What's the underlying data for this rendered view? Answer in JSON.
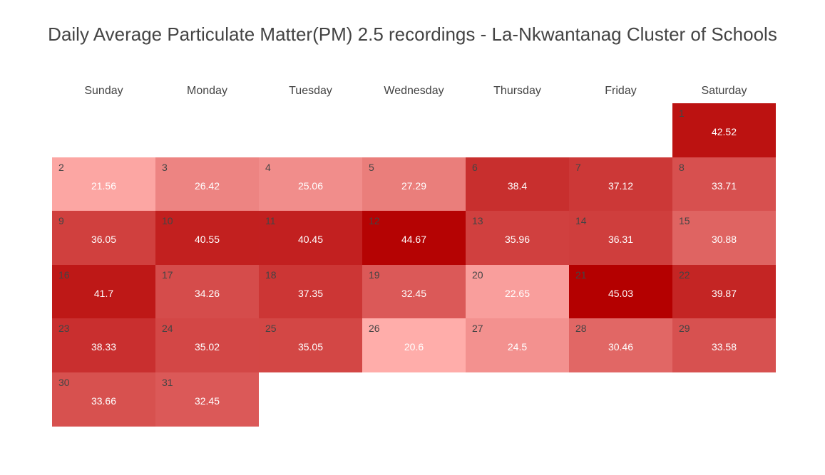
{
  "chart_data": {
    "type": "heatmap",
    "title": "Daily Average Particulate Matter(PM) 2.5 recordings -  La-Nkwantanag Cluster of Schools",
    "weekdays": [
      "Sunday",
      "Monday",
      "Tuesday",
      "Wednesday",
      "Thursday",
      "Friday",
      "Saturday"
    ],
    "first_weekday_index": 6,
    "color_scale": {
      "low": "#ffadaa",
      "high": "#b40000"
    },
    "days": [
      {
        "day": 1,
        "value": 42.52
      },
      {
        "day": 2,
        "value": 21.56
      },
      {
        "day": 3,
        "value": 26.42
      },
      {
        "day": 4,
        "value": 25.06
      },
      {
        "day": 5,
        "value": 27.29
      },
      {
        "day": 6,
        "value": 38.4
      },
      {
        "day": 7,
        "value": 37.12
      },
      {
        "day": 8,
        "value": 33.71
      },
      {
        "day": 9,
        "value": 36.05
      },
      {
        "day": 10,
        "value": 40.55
      },
      {
        "day": 11,
        "value": 40.45
      },
      {
        "day": 12,
        "value": 44.67
      },
      {
        "day": 13,
        "value": 35.96
      },
      {
        "day": 14,
        "value": 36.31
      },
      {
        "day": 15,
        "value": 30.88
      },
      {
        "day": 16,
        "value": 41.7
      },
      {
        "day": 17,
        "value": 34.26
      },
      {
        "day": 18,
        "value": 37.35
      },
      {
        "day": 19,
        "value": 32.45
      },
      {
        "day": 20,
        "value": 22.65
      },
      {
        "day": 21,
        "value": 45.03
      },
      {
        "day": 22,
        "value": 39.87
      },
      {
        "day": 23,
        "value": 38.33
      },
      {
        "day": 24,
        "value": 35.02
      },
      {
        "day": 25,
        "value": 35.05
      },
      {
        "day": 26,
        "value": 20.6
      },
      {
        "day": 27,
        "value": 24.5
      },
      {
        "day": 28,
        "value": 30.46
      },
      {
        "day": 29,
        "value": 33.58
      },
      {
        "day": 30,
        "value": 33.66
      },
      {
        "day": 31,
        "value": 32.45
      }
    ]
  }
}
